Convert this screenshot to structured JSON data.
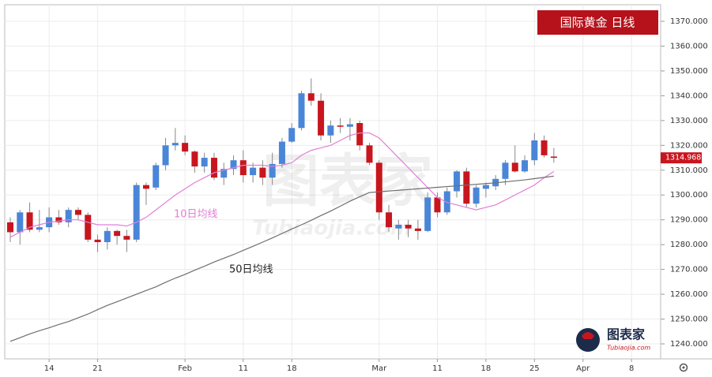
{
  "chart_data": {
    "type": "candlestick",
    "title": "国际黄金 日线",
    "x": [
      0,
      1,
      2,
      3,
      4,
      5,
      6,
      7,
      8,
      9,
      10,
      11,
      12,
      13,
      14,
      15,
      16,
      17,
      18,
      19,
      20,
      21,
      22,
      23,
      24,
      25,
      26,
      27,
      28,
      29,
      30,
      31,
      32,
      33,
      34,
      35,
      36,
      37,
      38,
      39,
      40,
      41,
      42,
      43,
      44,
      45,
      46,
      47,
      48,
      49,
      50,
      51,
      52,
      53,
      54,
      55,
      56
    ],
    "open": [
      1289,
      1285,
      1293,
      1286,
      1287,
      1291,
      1289,
      1294,
      1292,
      1282,
      1281,
      1285.5,
      1283.5,
      1282,
      1304,
      1303,
      1312,
      1320,
      1321,
      1317.5,
      1311.5,
      1315,
      1307,
      1310.5,
      1314,
      1308,
      1311,
      1307,
      1312.5,
      1321.5,
      1327,
      1341,
      1338,
      1324,
      1328,
      1327.5,
      1329,
      1320,
      1313,
      1293,
      1286.5,
      1288,
      1286.5,
      1285.5,
      1299,
      1293,
      1301.5,
      1309.5,
      1296.5,
      1302.5,
      1303.5,
      1306.5,
      1313,
      1309.5,
      1314,
      1322,
      1315.5
    ],
    "high": [
      1291,
      1294,
      1297,
      1294,
      1295,
      1294,
      1295,
      1295,
      1293,
      1284,
      1287,
      1286,
      1286,
      1305,
      1305,
      1313,
      1323,
      1327,
      1324,
      1318,
      1317,
      1317,
      1313,
      1316,
      1318,
      1313,
      1314,
      1317,
      1323,
      1329,
      1342,
      1347,
      1341,
      1330,
      1331,
      1331,
      1330,
      1321,
      1314,
      1296,
      1290,
      1290,
      1290,
      1301,
      1301,
      1303,
      1310,
      1311,
      1304,
      1305,
      1308,
      1314,
      1320,
      1316,
      1325,
      1324,
      1319
    ],
    "low": [
      1281,
      1280,
      1285,
      1285,
      1285,
      1288,
      1287,
      1290,
      1281,
      1277,
      1278,
      1280,
      1277,
      1281,
      1296,
      1302,
      1310,
      1318,
      1316,
      1309,
      1309,
      1306,
      1304,
      1308,
      1305,
      1305,
      1304,
      1304,
      1311,
      1321,
      1326,
      1336,
      1322,
      1321,
      1325,
      1322,
      1318,
      1312,
      1290,
      1285,
      1282,
      1283,
      1282,
      1285,
      1291,
      1292,
      1299,
      1295,
      1295,
      1299,
      1302,
      1304,
      1309,
      1309,
      1312,
      1315,
      1313
    ],
    "close": [
      1285,
      1293,
      1286,
      1287,
      1291,
      1289,
      1294,
      1292,
      1282,
      1281,
      1285.5,
      1283.5,
      1282,
      1304,
      1302.5,
      1312,
      1320,
      1321,
      1317.5,
      1311.5,
      1315,
      1307,
      1310.5,
      1314,
      1308,
      1311,
      1307,
      1312.5,
      1321.5,
      1327,
      1341,
      1338,
      1324,
      1328,
      1327.5,
      1328.5,
      1320,
      1313,
      1293,
      1287,
      1288,
      1286.5,
      1285.5,
      1299,
      1293,
      1301.5,
      1309.5,
      1296.5,
      1303,
      1304,
      1306.5,
      1313,
      1309.5,
      1314,
      1322,
      1316,
      1314.968
    ],
    "up_color": "#4a86d8",
    "down_color": "#c8161e",
    "series": [
      {
        "name": "10日均线",
        "color": "#e07fd6",
        "values": [
          1283,
          1285,
          1287,
          1288,
          1289,
          1289.5,
          1290,
          1290,
          1289,
          1288,
          1288,
          1288,
          1287.5,
          1289,
          1291,
          1294,
          1297,
          1300,
          1302.5,
          1305,
          1307,
          1309,
          1310,
          1311,
          1312,
          1312,
          1312,
          1311.5,
          1312,
          1313,
          1316,
          1318,
          1319,
          1320,
          1322,
          1324,
          1325,
          1325,
          1323,
          1319,
          1315,
          1311,
          1307,
          1303,
          1299,
          1297,
          1296,
          1295,
          1294,
          1295,
          1296,
          1298,
          1300,
          1302,
          1304,
          1307,
          1309.5
        ]
      },
      {
        "name": "50日均线",
        "color": "#6e6e6e",
        "values": [
          1241,
          1242.5,
          1244,
          1245.3,
          1246.5,
          1247.8,
          1249,
          1250.5,
          1252,
          1253.8,
          1255.5,
          1257,
          1258.5,
          1260,
          1261.5,
          1263,
          1264.8,
          1266.5,
          1268,
          1269.7,
          1271.3,
          1273,
          1274.5,
          1276,
          1277.7,
          1279.3,
          1281,
          1282.7,
          1284.5,
          1286.3,
          1288,
          1289.8,
          1291.7,
          1293.5,
          1295.5,
          1297.5,
          1299.3,
          1301,
          1301.3,
          1301.6,
          1301.9,
          1302.2,
          1302.5,
          1302.8,
          1303.1,
          1303.4,
          1303.7,
          1304,
          1304.3,
          1304.6,
          1304.9,
          1305.3,
          1305.7,
          1306.1,
          1306.6,
          1307.1,
          1307.6
        ]
      }
    ],
    "last_price": 1314.968,
    "xlim": [
      -0.57,
      67
    ],
    "xticks": [
      {
        "value": 4,
        "label": "14"
      },
      {
        "value": 9,
        "label": "21"
      },
      {
        "value": 18,
        "label": "Feb"
      },
      {
        "value": 24,
        "label": "11"
      },
      {
        "value": 29,
        "label": "18"
      },
      {
        "value": 38,
        "label": "Mar"
      },
      {
        "value": 44,
        "label": "11"
      },
      {
        "value": 49,
        "label": "18"
      },
      {
        "value": 54,
        "label": "25"
      },
      {
        "value": 59,
        "label": "Apr"
      },
      {
        "value": 64,
        "label": "8"
      }
    ],
    "ylim": [
      1233.96,
      1376.68
    ],
    "yticks": [
      {
        "value": 1240,
        "label": "1240.000"
      },
      {
        "value": 1250,
        "label": "1250.000"
      },
      {
        "value": 1260,
        "label": "1260.000"
      },
      {
        "value": 1270,
        "label": "1270.000"
      },
      {
        "value": 1280,
        "label": "1280.000"
      },
      {
        "value": 1290,
        "label": "1290.000"
      },
      {
        "value": 1300,
        "label": "1300.000"
      },
      {
        "value": 1310,
        "label": "1310.000"
      },
      {
        "value": 1320,
        "label": "1320.000"
      },
      {
        "value": 1330,
        "label": "1330.000"
      },
      {
        "value": 1340,
        "label": "1340.000"
      },
      {
        "value": 1350,
        "label": "1350.000"
      },
      {
        "value": 1360,
        "label": "1360.000"
      },
      {
        "value": 1370,
        "label": "1370.000"
      }
    ],
    "watermark": "图表家",
    "watermark_sub": "Tubiaojia.com"
  }
}
